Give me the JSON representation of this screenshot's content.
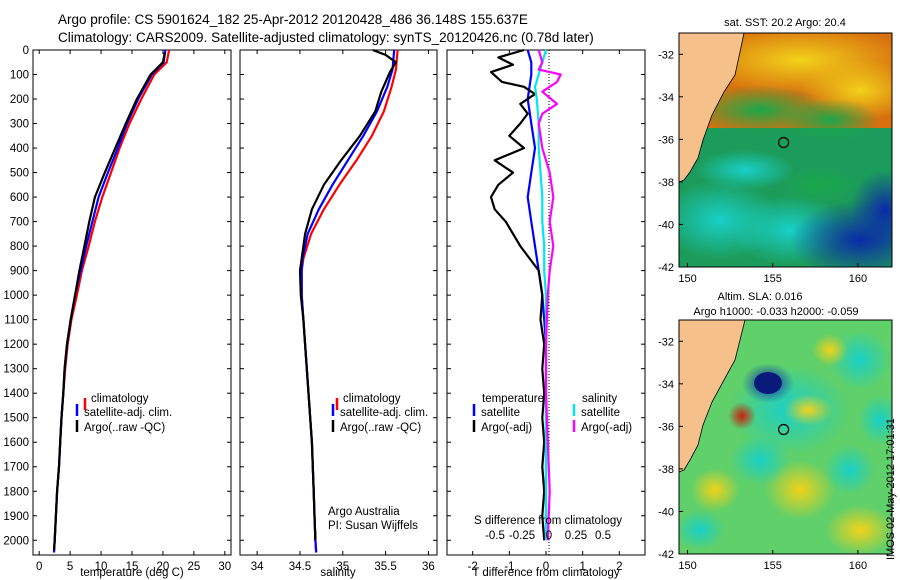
{
  "header": {
    "line1": "Argo profile: CS 5901624_182 25-Apr-2012 20120428_486 36.148S 155.637E",
    "line2": "Climatology: CARS2009. Satellite-adjusted climatology: synTS_20120426.nc (0.78d later)"
  },
  "colors": {
    "climatology": "#ff0000",
    "satellite": "#0000ff",
    "argo": "#000000",
    "sal_sat": "#00e5ee",
    "sal_argo": "#ff00ff",
    "land": "#f5c08a"
  },
  "chart_data": [
    {
      "type": "line",
      "id": "temperature",
      "xlabel": "temperature (deg C)",
      "ylabel": "",
      "xlim": [
        -1,
        31
      ],
      "ylim": [
        2060,
        0
      ],
      "xticks": [
        0,
        5,
        10,
        15,
        20,
        25,
        30
      ],
      "yticks": [
        0,
        100,
        200,
        300,
        400,
        500,
        600,
        700,
        800,
        900,
        1000,
        1100,
        1200,
        1300,
        1400,
        1500,
        1600,
        1700,
        1800,
        1900,
        2000
      ],
      "legend": [
        "climatology",
        "satellite-adj. clim.",
        "Argo(..raw -QC)"
      ],
      "series": [
        {
          "name": "climatology",
          "color": "#ff0000",
          "points": [
            [
              21,
              0
            ],
            [
              20.6,
              50
            ],
            [
              18.6,
              100
            ],
            [
              16.5,
              200
            ],
            [
              14.6,
              300
            ],
            [
              13.0,
              400
            ],
            [
              11.6,
              500
            ],
            [
              10.2,
              600
            ],
            [
              9.0,
              700
            ],
            [
              8.0,
              800
            ],
            [
              6.9,
              900
            ],
            [
              6.1,
              1000
            ],
            [
              5.2,
              1100
            ],
            [
              4.6,
              1200
            ],
            [
              4.2,
              1300
            ],
            [
              3.9,
              1400
            ],
            [
              3.6,
              1500
            ],
            [
              3.4,
              1600
            ],
            [
              3.2,
              1700
            ],
            [
              2.9,
              1800
            ],
            [
              2.7,
              1900
            ],
            [
              2.5,
              2000
            ],
            [
              2.4,
              2050
            ]
          ]
        },
        {
          "name": "satellite-adj. clim.",
          "color": "#0000ff",
          "points": [
            [
              20.4,
              0
            ],
            [
              20.1,
              50
            ],
            [
              18.2,
              100
            ],
            [
              16.0,
              200
            ],
            [
              14.2,
              300
            ],
            [
              12.7,
              400
            ],
            [
              11.1,
              500
            ],
            [
              9.6,
              600
            ],
            [
              8.6,
              700
            ],
            [
              7.6,
              800
            ],
            [
              6.7,
              900
            ],
            [
              5.8,
              1000
            ],
            [
              5.1,
              1100
            ],
            [
              4.5,
              1200
            ],
            [
              4.1,
              1300
            ],
            [
              3.9,
              1400
            ],
            [
              3.6,
              1500
            ],
            [
              3.4,
              1600
            ],
            [
              3.2,
              1700
            ],
            [
              2.9,
              1800
            ],
            [
              2.7,
              1900
            ],
            [
              2.5,
              2000
            ],
            [
              2.4,
              2050
            ]
          ]
        },
        {
          "name": "Argo(..raw -QC)",
          "color": "#000000",
          "points": [
            [
              20.3,
              10
            ],
            [
              20.0,
              50
            ],
            [
              18.0,
              100
            ],
            [
              15.8,
              200
            ],
            [
              14.0,
              300
            ],
            [
              12.3,
              400
            ],
            [
              10.6,
              500
            ],
            [
              9.0,
              600
            ],
            [
              8.1,
              700
            ],
            [
              7.3,
              800
            ],
            [
              6.5,
              900
            ],
            [
              5.8,
              1000
            ],
            [
              5.1,
              1100
            ],
            [
              4.5,
              1200
            ],
            [
              4.1,
              1300
            ],
            [
              3.9,
              1400
            ],
            [
              3.6,
              1500
            ],
            [
              3.4,
              1600
            ],
            [
              3.2,
              1700
            ],
            [
              2.9,
              1800
            ],
            [
              2.7,
              1900
            ],
            [
              2.5,
              2000
            ],
            [
              2.4,
              2040
            ]
          ]
        }
      ]
    },
    {
      "type": "line",
      "id": "salinity",
      "xlabel": "salinity",
      "ylabel": "",
      "xlim": [
        33.8,
        36.1
      ],
      "ylim": [
        2060,
        0
      ],
      "xticks": [
        34,
        34.5,
        35,
        35.5,
        36
      ],
      "legend": [
        "climatology",
        "satellite-adj. clim.",
        "Argo(..raw -QC)"
      ],
      "annotation": [
        "Argo Australia",
        "PI: Susan Wijffels"
      ],
      "series": [
        {
          "name": "climatology",
          "color": "#ff0000",
          "points": [
            [
              35.64,
              0
            ],
            [
              35.62,
              80
            ],
            [
              35.57,
              150
            ],
            [
              35.48,
              250
            ],
            [
              35.34,
              350
            ],
            [
              35.16,
              450
            ],
            [
              34.96,
              550
            ],
            [
              34.78,
              650
            ],
            [
              34.63,
              750
            ],
            [
              34.54,
              850
            ],
            [
              34.52,
              900
            ],
            [
              34.52,
              1000
            ],
            [
              34.54,
              1100
            ],
            [
              34.56,
              1200
            ],
            [
              34.58,
              1300
            ],
            [
              34.6,
              1400
            ],
            [
              34.62,
              1500
            ],
            [
              34.64,
              1600
            ],
            [
              34.65,
              1700
            ],
            [
              34.66,
              1800
            ],
            [
              34.67,
              1900
            ],
            [
              34.68,
              2000
            ],
            [
              34.69,
              2050
            ]
          ]
        },
        {
          "name": "satellite-adj. clim.",
          "color": "#0000ff",
          "points": [
            [
              35.6,
              0
            ],
            [
              35.58,
              80
            ],
            [
              35.52,
              150
            ],
            [
              35.4,
              250
            ],
            [
              35.24,
              350
            ],
            [
              35.06,
              450
            ],
            [
              34.88,
              550
            ],
            [
              34.72,
              650
            ],
            [
              34.59,
              750
            ],
            [
              34.53,
              850
            ],
            [
              34.52,
              900
            ],
            [
              34.52,
              1000
            ],
            [
              34.54,
              1100
            ],
            [
              34.56,
              1200
            ],
            [
              34.58,
              1300
            ],
            [
              34.6,
              1400
            ],
            [
              34.62,
              1500
            ],
            [
              34.64,
              1600
            ],
            [
              34.65,
              1700
            ],
            [
              34.66,
              1800
            ],
            [
              34.67,
              1900
            ],
            [
              34.68,
              2000
            ],
            [
              34.69,
              2050
            ]
          ]
        },
        {
          "name": "Argo(..raw -QC)",
          "color": "#000000",
          "points": [
            [
              35.35,
              0
            ],
            [
              35.5,
              20
            ],
            [
              35.62,
              50
            ],
            [
              35.55,
              90
            ],
            [
              35.5,
              130
            ],
            [
              35.45,
              170
            ],
            [
              35.38,
              250
            ],
            [
              35.2,
              350
            ],
            [
              34.98,
              450
            ],
            [
              34.78,
              550
            ],
            [
              34.64,
              650
            ],
            [
              34.56,
              750
            ],
            [
              34.52,
              850
            ],
            [
              34.5,
              900
            ],
            [
              34.51,
              1000
            ],
            [
              34.54,
              1100
            ],
            [
              34.56,
              1200
            ],
            [
              34.58,
              1300
            ],
            [
              34.6,
              1400
            ],
            [
              34.62,
              1500
            ],
            [
              34.64,
              1600
            ],
            [
              34.65,
              1700
            ],
            [
              34.66,
              1800
            ],
            [
              34.67,
              1900
            ],
            [
              34.68,
              2000
            ]
          ]
        }
      ]
    },
    {
      "type": "line",
      "id": "difference",
      "xlabel": "T difference from climatology",
      "ylabel": "",
      "top_axis_label": "S difference from climatology",
      "xlim": [
        -2.7,
        2.7
      ],
      "ylim": [
        2060,
        0
      ],
      "xticks": [
        -2,
        -1,
        0,
        1,
        2
      ],
      "top_ticks": [
        "-0.5",
        "-0.25",
        "0",
        "0.25",
        "0.5"
      ],
      "legend_temperature_title": "temperature",
      "legend_salinity_title": "salinity",
      "legend": [
        "satellite",
        "Argo(-adj)",
        "satellite",
        "Argo(-adj)"
      ],
      "series": [
        {
          "name": "T satellite",
          "color": "#0000ff",
          "points": [
            [
              -0.5,
              0
            ],
            [
              -0.4,
              50
            ],
            [
              -0.4,
              100
            ],
            [
              -0.5,
              200
            ],
            [
              -0.4,
              300
            ],
            [
              -0.3,
              400
            ],
            [
              -0.4,
              500
            ],
            [
              -0.5,
              600
            ],
            [
              -0.4,
              700
            ],
            [
              -0.3,
              800
            ],
            [
              -0.2,
              900
            ],
            [
              -0.1,
              1000
            ],
            [
              -0.05,
              1100
            ],
            [
              0,
              1200
            ],
            [
              0,
              1400
            ],
            [
              0,
              1600
            ],
            [
              0,
              1800
            ],
            [
              0,
              2000
            ]
          ]
        },
        {
          "name": "T Argo(-adj)",
          "color": "#000000",
          "points": [
            [
              -0.6,
              0
            ],
            [
              -1.3,
              30
            ],
            [
              -0.9,
              60
            ],
            [
              -1.5,
              90
            ],
            [
              -1.2,
              130
            ],
            [
              -0.6,
              150
            ],
            [
              -0.3,
              180
            ],
            [
              -0.7,
              220
            ],
            [
              -0.5,
              260
            ],
            [
              -0.7,
              300
            ],
            [
              -1.0,
              350
            ],
            [
              -0.6,
              400
            ],
            [
              -1.4,
              450
            ],
            [
              -0.9,
              500
            ],
            [
              -1.3,
              550
            ],
            [
              -1.5,
              600
            ],
            [
              -1.4,
              650
            ],
            [
              -1.1,
              700
            ],
            [
              -0.7,
              800
            ],
            [
              -0.2,
              900
            ],
            [
              -0.1,
              1000
            ],
            [
              -0.15,
              1100
            ],
            [
              -0.05,
              1200
            ],
            [
              -0.1,
              1300
            ],
            [
              -0.05,
              1400
            ],
            [
              -0.1,
              1500
            ],
            [
              -0.05,
              1600
            ],
            [
              -0.1,
              1700
            ],
            [
              -0.05,
              1800
            ],
            [
              -0.1,
              1900
            ],
            [
              -0.05,
              2000
            ]
          ]
        },
        {
          "name": "S satellite",
          "color": "#00e5ee",
          "points": [
            [
              0,
              0
            ],
            [
              -0.1,
              50
            ],
            [
              -0.2,
              100
            ],
            [
              -0.3,
              150
            ],
            [
              -0.25,
              200
            ],
            [
              -0.2,
              300
            ],
            [
              -0.2,
              400
            ],
            [
              -0.15,
              500
            ],
            [
              -0.1,
              600
            ],
            [
              -0.1,
              700
            ],
            [
              -0.05,
              800
            ],
            [
              -0.05,
              900
            ],
            [
              0,
              1000
            ],
            [
              0,
              1200
            ],
            [
              0,
              1400
            ],
            [
              0,
              1600
            ],
            [
              0,
              1800
            ],
            [
              0,
              2000
            ]
          ]
        },
        {
          "name": "S Argo(-adj)",
          "color": "#ff00ff",
          "points": [
            [
              -0.2,
              0
            ],
            [
              -0.1,
              50
            ],
            [
              -0.2,
              80
            ],
            [
              0.4,
              100
            ],
            [
              0.3,
              130
            ],
            [
              -0.1,
              170
            ],
            [
              0.3,
              220
            ],
            [
              -0.1,
              260
            ],
            [
              -0.2,
              300
            ],
            [
              -0.1,
              400
            ],
            [
              0.1,
              500
            ],
            [
              0.2,
              600
            ],
            [
              0.1,
              700
            ],
            [
              0.2,
              800
            ],
            [
              0.1,
              900
            ],
            [
              0.05,
              1000
            ],
            [
              0,
              1200
            ],
            [
              0,
              1400
            ],
            [
              0.05,
              1600
            ],
            [
              0.1,
              1800
            ],
            [
              0.05,
              2000
            ]
          ]
        }
      ]
    },
    {
      "type": "heatmap",
      "id": "sst_map",
      "title": "sat. SST: 20.2  Argo: 20.4",
      "xlim": [
        149.5,
        162
      ],
      "ylim": [
        -42,
        -31
      ],
      "xticks": [
        150,
        155,
        160
      ],
      "yticks": [
        -32,
        -34,
        -36,
        -38,
        -40,
        -42
      ],
      "marker": [
        155.637,
        -36.148
      ]
    },
    {
      "type": "heatmap",
      "id": "sla_map",
      "title": "Altim. SLA: 0.016",
      "subtitle": "Argo h1000: -0.033 h2000: -0.059",
      "xlim": [
        149.5,
        162
      ],
      "ylim": [
        -42,
        -31
      ],
      "xticks": [
        150,
        155,
        160
      ],
      "yticks": [
        -32,
        -34,
        -36,
        -38,
        -40,
        -42
      ],
      "marker": [
        155.637,
        -36.148
      ]
    }
  ],
  "footer_stamp": "IMOS 02-May-2012 17:01:31"
}
